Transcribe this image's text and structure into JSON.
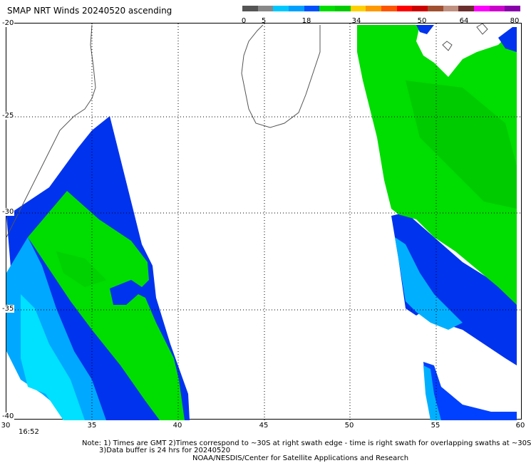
{
  "header": {
    "title": "SMAP NRT Winds 20240520 ascending"
  },
  "colorbar": {
    "labels": [
      "0",
      "5",
      "18",
      "34",
      "50",
      "64",
      "80"
    ],
    "colors": [
      "#555555",
      "#888888",
      "#00c8ff",
      "#00a0ff",
      "#0050ff",
      "#00dd00",
      "#00cc00",
      "#ffd000",
      "#ff9900",
      "#ff5500",
      "#ff0000",
      "#cc0000",
      "#a05030",
      "#c09080",
      "#6b2e2e",
      "#ff00ff",
      "#cc00cc",
      "#8800aa"
    ]
  },
  "map": {
    "lat_labels": [
      "-20",
      "-25",
      "-30",
      "-35",
      "-40"
    ],
    "lon_labels": [
      "30",
      "35",
      "40",
      "45",
      "50",
      "55",
      "60"
    ],
    "lat_range": [
      -40,
      -20
    ],
    "lon_range": [
      30,
      60
    ],
    "colors": {
      "calm": "#00e0ff",
      "moderate": "#0000ee",
      "strong": "#00dd00",
      "land": "#ffffff",
      "coast": "#555555",
      "grid": "#000000"
    }
  },
  "footer": {
    "time": "16:52",
    "note_line1": "Note: 1) Times are GMT 2)Times correspond to ~30S at right swath edge - time is right swath for overlapping swaths at ~30S",
    "note_line2": "3)Data buffer is 24 hrs for 20240520",
    "credit": "NOAA/NESDIS/Center for Satellite Applications and Research"
  }
}
